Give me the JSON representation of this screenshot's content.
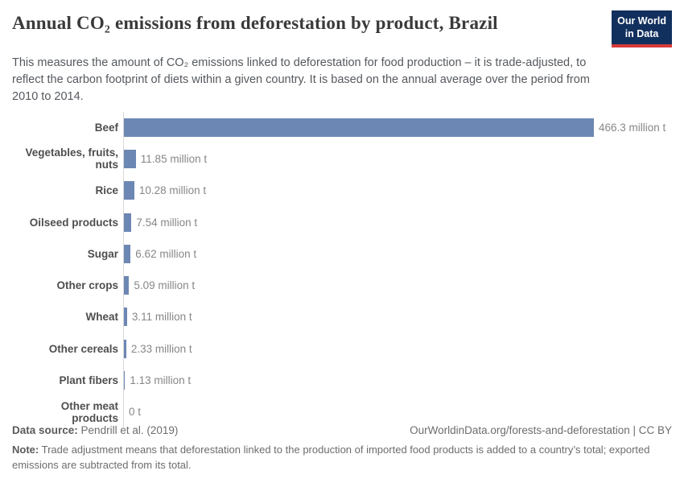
{
  "header": {
    "title": "Annual CO₂ emissions from deforestation by product, Brazil",
    "subtitle": "This measures the amount of CO₂ emissions linked to deforestation for food production – it is trade-adjusted, to reflect the carbon footprint of diets within a given country. It is based on the annual average over the period from 2010 to 2014."
  },
  "logo": {
    "line1": "Our World",
    "line2": "in Data",
    "bg_color": "#12305e",
    "accent_color": "#d7393a"
  },
  "chart_data": {
    "type": "bar",
    "orientation": "horizontal",
    "title": "Annual CO₂ emissions from deforestation by product, Brazil",
    "unit": "million t",
    "categories": [
      "Beef",
      "Vegetables, fruits, nuts",
      "Rice",
      "Oilseed products",
      "Sugar",
      "Other crops",
      "Wheat",
      "Other cereals",
      "Plant fibers",
      "Other meat products"
    ],
    "values": [
      466.3,
      11.85,
      10.28,
      7.54,
      6.62,
      5.09,
      3.11,
      2.33,
      1.13,
      0
    ],
    "value_labels": [
      "466.3 million t",
      "11.85 million t",
      "10.28 million t",
      "7.54 million t",
      "6.62 million t",
      "5.09 million t",
      "3.11 million t",
      "2.33 million t",
      "1.13 million t",
      "0 t"
    ],
    "xlim": [
      0,
      466.3
    ],
    "bar_color": "#6d87b4",
    "grid": false,
    "legend": false
  },
  "footer": {
    "source_label": "Data source:",
    "source_value": "Pendrill et al. (2019)",
    "citation": "OurWorldinData.org/forests-and-deforestation | CC BY",
    "note_label": "Note:",
    "note_value": "Trade adjustment means that deforestation linked to the production of imported food products is added to a country’s total; exported emissions are subtracted from its total."
  }
}
